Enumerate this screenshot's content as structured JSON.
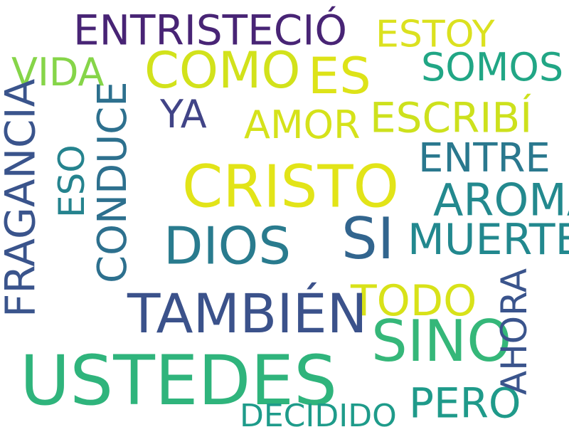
{
  "words": [
    {
      "text": "ENTRISTECIÓ",
      "color": "#482475",
      "orientation": "horizontal"
    },
    {
      "text": "ESTOY",
      "color": "#dbe11f",
      "orientation": "horizontal"
    },
    {
      "text": "COMO",
      "color": "#d2e21b",
      "orientation": "horizontal"
    },
    {
      "text": "ES",
      "color": "#dde318",
      "orientation": "horizontal"
    },
    {
      "text": "SOMOS",
      "color": "#21a685",
      "orientation": "horizontal"
    },
    {
      "text": "VIDA",
      "color": "#86d549",
      "orientation": "horizontal"
    },
    {
      "text": "YA",
      "color": "#414487",
      "orientation": "horizontal"
    },
    {
      "text": "AMOR",
      "color": "#d5e21a",
      "orientation": "horizontal"
    },
    {
      "text": "ESCRIBÍ",
      "color": "#cde11d",
      "orientation": "horizontal"
    },
    {
      "text": "ENTRE",
      "color": "#2a788e",
      "orientation": "horizontal"
    },
    {
      "text": "CRISTO",
      "color": "#e2e418",
      "orientation": "horizontal"
    },
    {
      "text": "AROMA",
      "color": "#23898e",
      "orientation": "horizontal"
    },
    {
      "text": "SI",
      "color": "#32658e",
      "orientation": "horizontal"
    },
    {
      "text": "MUERTE",
      "color": "#22888e",
      "orientation": "horizontal"
    },
    {
      "text": "DIOS",
      "color": "#297b8e",
      "orientation": "horizontal"
    },
    {
      "text": "TODO",
      "color": "#d8e219",
      "orientation": "horizontal"
    },
    {
      "text": "TAMBIÉN",
      "color": "#3b528b",
      "orientation": "horizontal"
    },
    {
      "text": "SINO",
      "color": "#35b779",
      "orientation": "horizontal"
    },
    {
      "text": "USTEDES",
      "color": "#2fb47c",
      "orientation": "horizontal"
    },
    {
      "text": "PERO",
      "color": "#1f9a8a",
      "orientation": "horizontal"
    },
    {
      "text": "DECIDIDO",
      "color": "#1e9b8a",
      "orientation": "horizontal"
    },
    {
      "text": "FRAGANCIA",
      "color": "#3a548c",
      "orientation": "vertical"
    },
    {
      "text": "ESO",
      "color": "#25838e",
      "orientation": "vertical"
    },
    {
      "text": "CONDUCE",
      "color": "#2d708e",
      "orientation": "vertical"
    },
    {
      "text": "AHORA",
      "color": "#3a548c",
      "orientation": "vertical"
    }
  ]
}
